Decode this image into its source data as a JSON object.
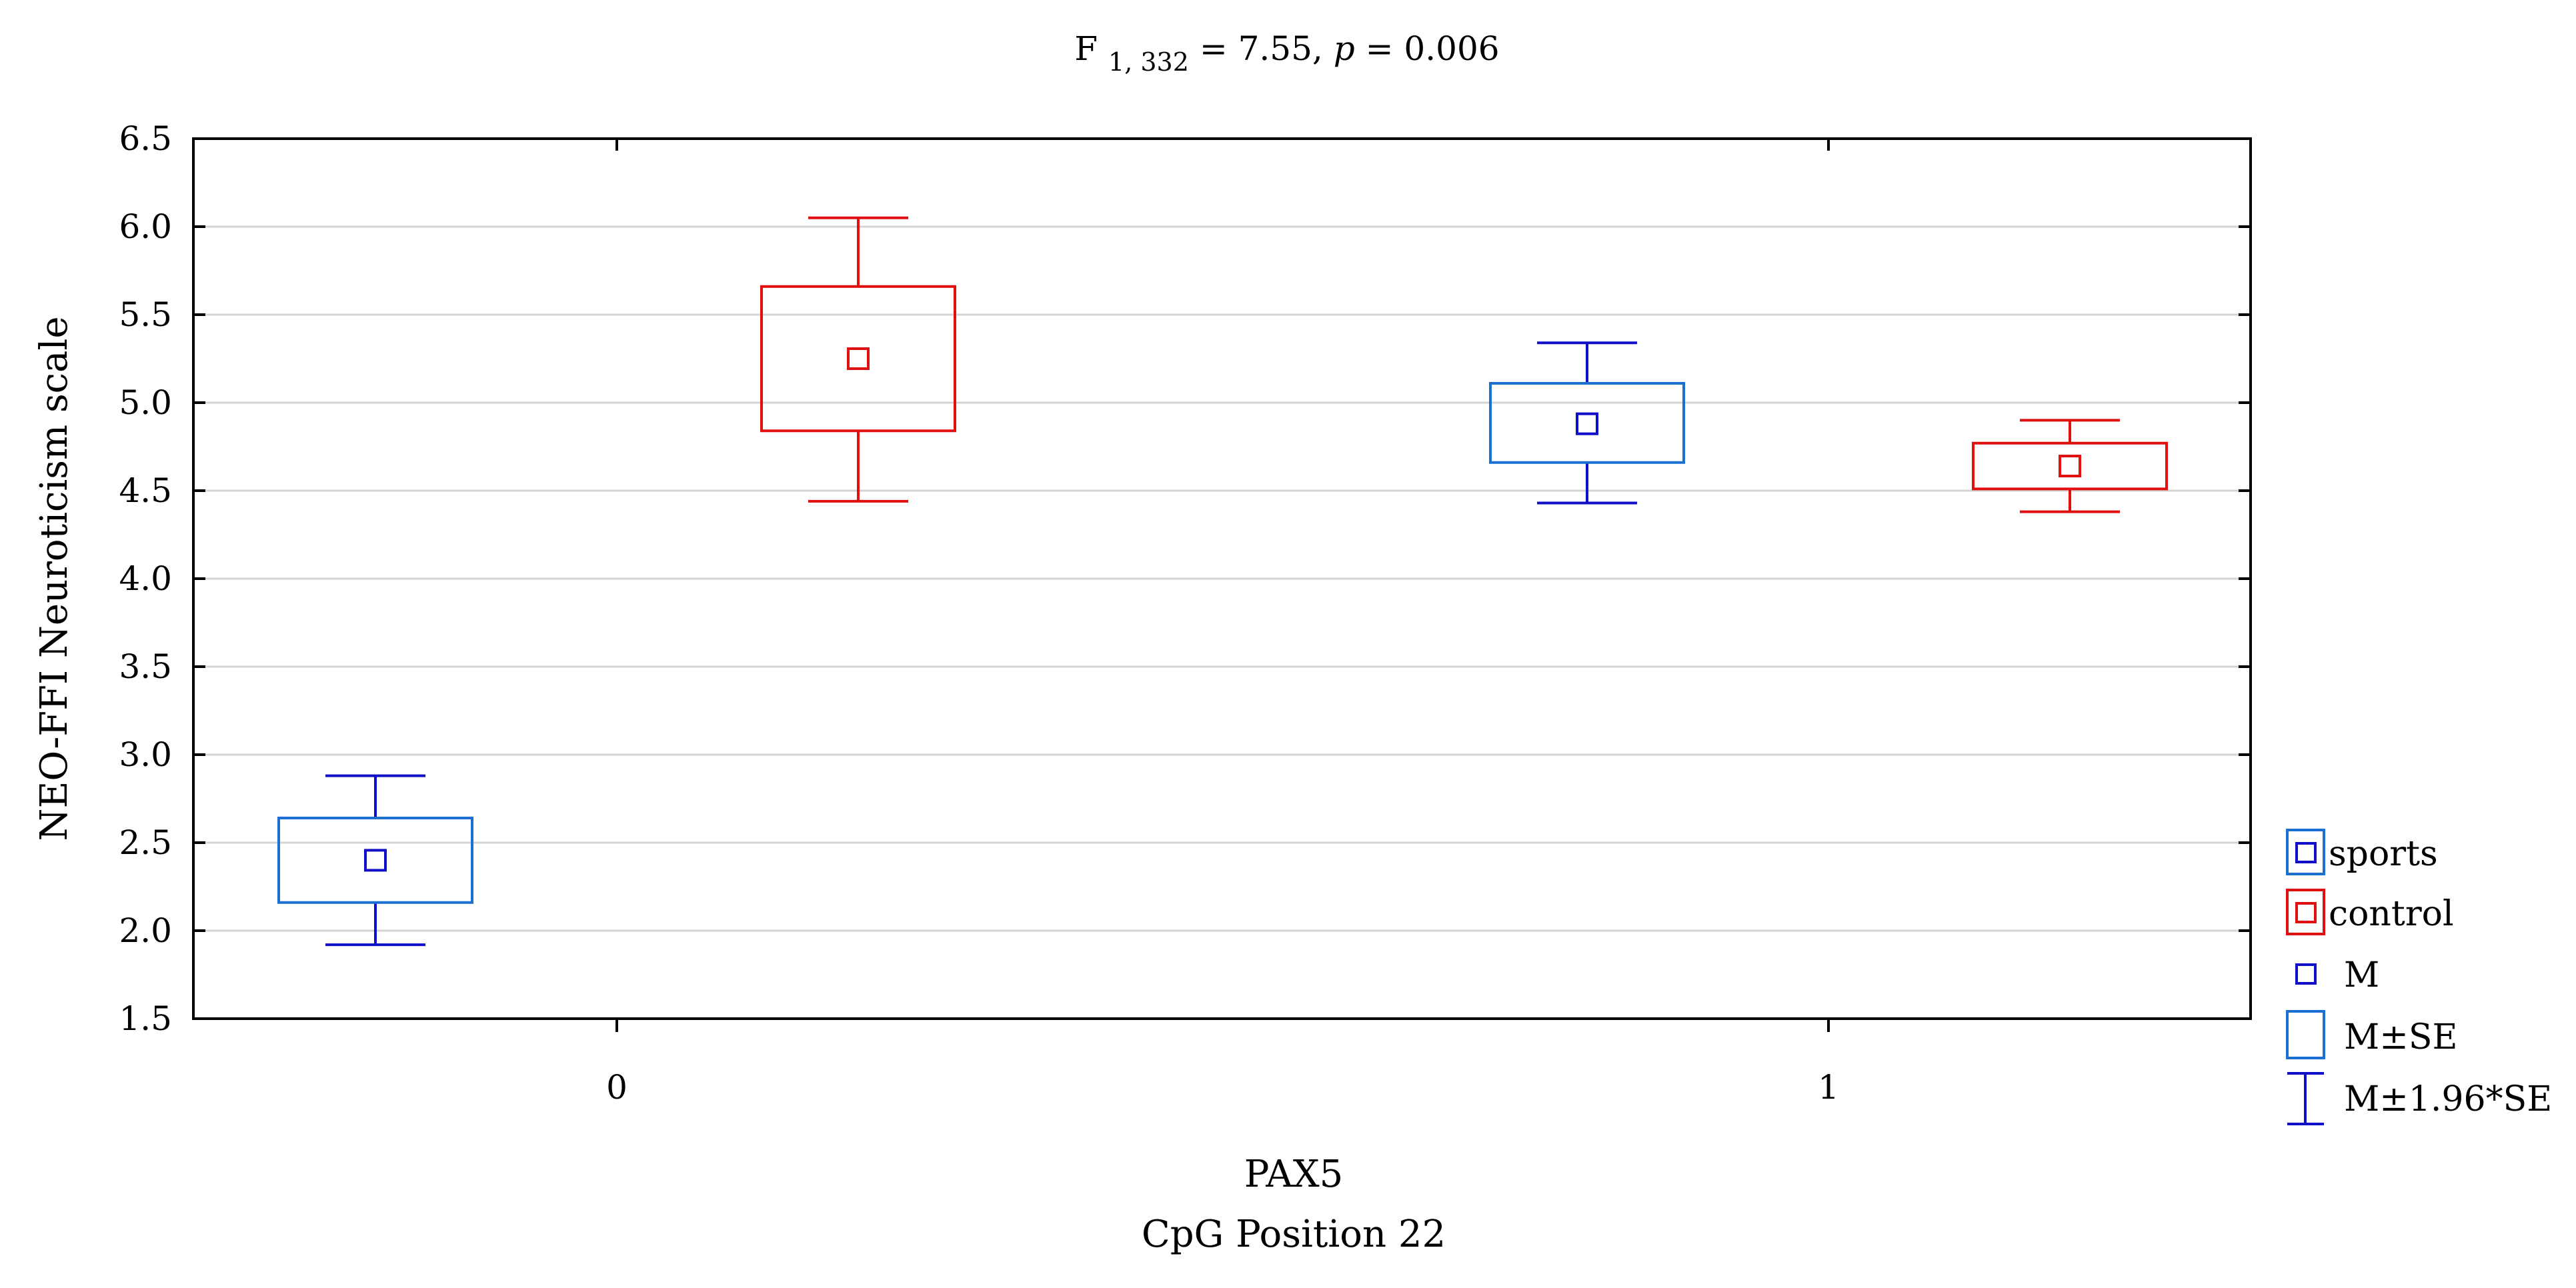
{
  "chart_data": {
    "type": "box",
    "title": {
      "f_symbol": "F",
      "df": "1, 332",
      "stat": " = 7.55, ",
      "p_symbol": "p",
      "p_value": " = 0.006"
    },
    "xlabel": [
      "PAX5",
      "CpG Position 22"
    ],
    "ylabel": "NEO-FFI Neuroticism scale",
    "categories": [
      "0",
      "1"
    ],
    "ylim": [
      1.5,
      6.5
    ],
    "yticks": [
      "1.5",
      "2.0",
      "2.5",
      "3.0",
      "3.5",
      "4.0",
      "4.5",
      "5.0",
      "5.5",
      "6.0",
      "6.5"
    ],
    "grid": true,
    "legend_position": "right",
    "series": [
      {
        "name": "sports",
        "color_box": "#1a6fd1",
        "color_whisker": "#1010c8",
        "color_mean": "#1010c8",
        "values": [
          {
            "category": "0",
            "mean": 2.4,
            "se_low": 2.16,
            "se_high": 2.64,
            "ci_low": 1.92,
            "ci_high": 2.88
          },
          {
            "category": "1",
            "mean": 4.88,
            "se_low": 4.66,
            "se_high": 5.11,
            "ci_low": 4.43,
            "ci_high": 5.34
          }
        ]
      },
      {
        "name": "control",
        "color_box": "#e01010",
        "color_whisker": "#e01010",
        "color_mean": "#e01010",
        "values": [
          {
            "category": "0",
            "mean": 5.25,
            "se_low": 4.84,
            "se_high": 5.66,
            "ci_low": 4.44,
            "ci_high": 6.05
          },
          {
            "category": "1",
            "mean": 4.64,
            "se_low": 4.51,
            "se_high": 4.77,
            "ci_low": 4.38,
            "ci_high": 4.9
          }
        ]
      }
    ],
    "legend": [
      {
        "label": "sports",
        "kind": "series-box",
        "color": "#1a6fd1",
        "inner": "#1010c8"
      },
      {
        "label": "control",
        "kind": "series-box",
        "color": "#e01010",
        "inner": "#e01010"
      },
      {
        "label": "M",
        "kind": "mean",
        "color": "#1010c8"
      },
      {
        "label": "M±SE",
        "kind": "se-box",
        "color": "#1a6fd1"
      },
      {
        "label": "M±1.96*SE",
        "kind": "whisker",
        "color": "#1010c8"
      }
    ]
  }
}
